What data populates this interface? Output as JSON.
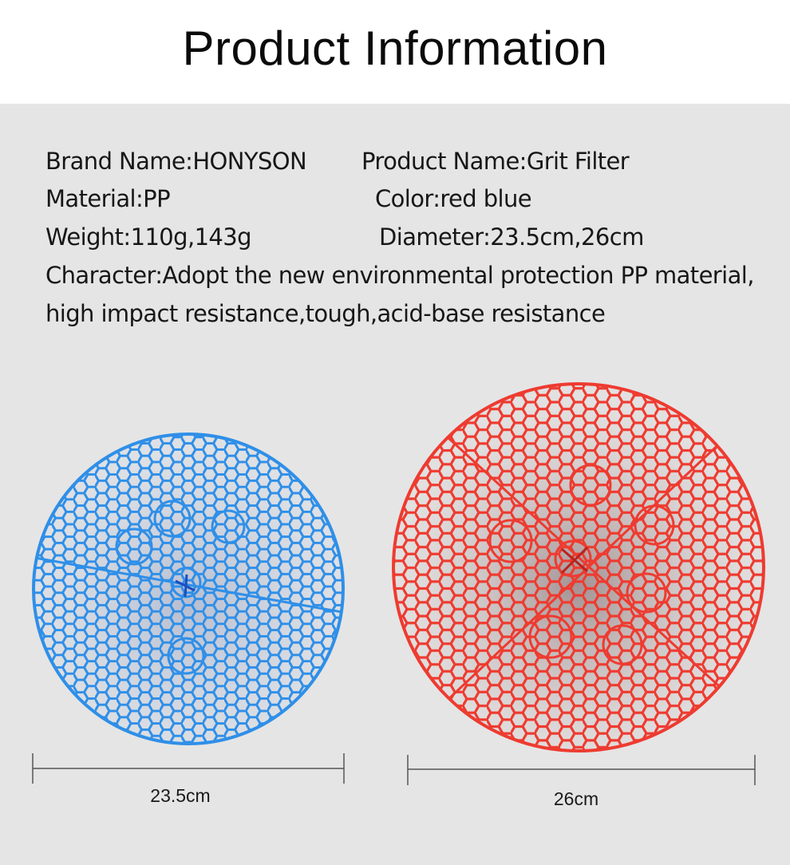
{
  "header": {
    "title": "Product Information"
  },
  "specs": {
    "brand": "Brand Name:HONYSON",
    "product_name": "Product Name:Grit Filter",
    "material": "Material:PP",
    "color": "Color:red  blue",
    "weight": "Weight:110g,143g",
    "diameter": "Diameter:23.5cm,26cm",
    "character_line1": "Character:Adopt the new environmental protection PP material,",
    "character_line2": "high impact resistance,tough,acid-base resistance"
  },
  "products": [
    {
      "color": "#2f8fe8",
      "label": "23.5cm",
      "icon": "blue-grit-filter"
    },
    {
      "color": "#ee3b30",
      "label": "26cm",
      "icon": "red-grit-filter"
    }
  ]
}
